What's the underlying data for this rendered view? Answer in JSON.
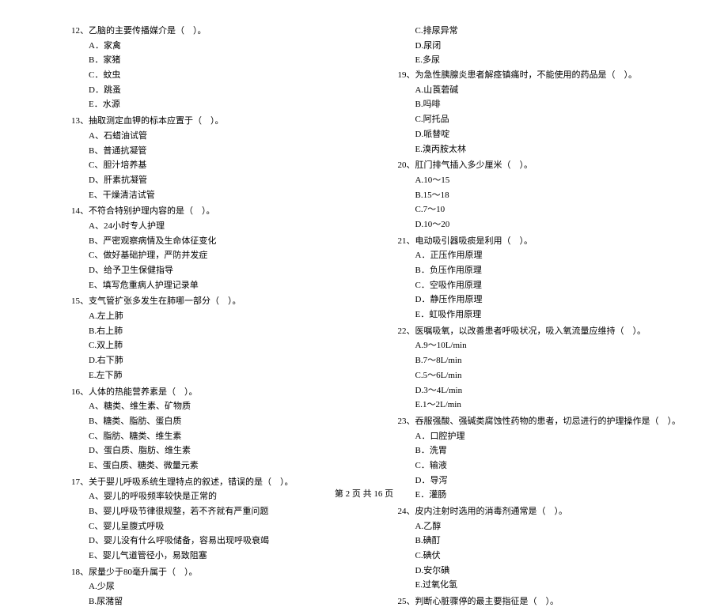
{
  "footer": "第 2 页 共 16 页",
  "left": [
    {
      "stem": "12、乙脑的主要传播媒介是（    ）。",
      "options": [
        "A．家禽",
        "B．家猪",
        "C．蚊虫",
        "D．跳蚤",
        "E．水源"
      ]
    },
    {
      "stem": "13、抽取测定血钾的标本应置于（    ）。",
      "options": [
        "A、石蜡油试管",
        "B、普通抗凝管",
        "C、胆汁培养基",
        "D、肝素抗凝管",
        "E、干燥清洁试管"
      ]
    },
    {
      "stem": "14、不符合特别护理内容的是（    ）。",
      "options": [
        "A、24小时专人护理",
        "B、严密观察病情及生命体征变化",
        "C、做好基础护理，严防并发症",
        "D、给予卫生保健指导",
        "E、填写危重病人护理记录单"
      ]
    },
    {
      "stem": "15、支气管扩张多发生在肺哪一部分（    ）。",
      "options": [
        "A.左上肺",
        "B.右上肺",
        "C.双上肺",
        "D.右下肺",
        "E.左下肺"
      ]
    },
    {
      "stem": "16、人体的热能营养素是（    ）。",
      "options": [
        "A、糖类、维生素、矿物质",
        "B、糖类、脂肪、蛋白质",
        "C、脂肪、糖类、维生素",
        "D、蛋白质、脂肪、维生素",
        "E、蛋白质、糖类、微量元素"
      ]
    },
    {
      "stem": "17、关于婴儿呼吸系统生理特点的叙述，错误的是（    ）。",
      "options": [
        "A、婴儿的呼吸频率较快是正常的",
        "B、婴儿呼吸节律很规整，若不齐就有严重问题",
        "C、婴儿呈腹式呼吸",
        "D、婴儿没有什么呼吸储备，容易出现呼吸衰竭",
        "E、婴儿气道管径小，易致阻塞"
      ]
    },
    {
      "stem": "18、尿量少于80毫升属于（    ）。",
      "options": [
        "A.少尿",
        "B.尿潴留"
      ]
    }
  ],
  "right_pre": [
    "C.排尿异常",
    "D.尿闭",
    "E.多尿"
  ],
  "right": [
    {
      "stem": "19、为急性胰腺炎患者解痉镇痛时，不能使用的药品是（    ）。",
      "options": [
        "A.山莨菪碱",
        "B.吗啡",
        "C.阿托品",
        "D.哌替啶",
        "E.溴丙胺太林"
      ]
    },
    {
      "stem": "20、肛门排气插入多少厘米（    ）。",
      "options": [
        "A.10～15",
        "B.15～18",
        "C.7～10",
        "D.10～20"
      ]
    },
    {
      "stem": "21、电动吸引器吸痰是利用（    ）。",
      "options": [
        "A．正压作用原理",
        "B．负压作用原理",
        "C．空吸作用原理",
        "D．静压作用原理",
        "E．虹吸作用原理"
      ]
    },
    {
      "stem": "22、医嘱吸氧，以改善患者呼吸状况，吸入氧流量应维持（    ）。",
      "options": [
        "A.9～10L/min",
        "B.7～8L/min",
        "C.5～6L/min",
        "D.3～4L/min",
        "E.1～2L/min"
      ]
    },
    {
      "stem": "23、吞服强酸、强碱类腐蚀性药物的患者，切忌进行的护理操作是（    ）。",
      "options": [
        "A．口腔护理",
        "B．洗胃",
        "C．输液",
        "D．导泻",
        "E．灌肠"
      ]
    },
    {
      "stem": "24、皮内注射时选用的消毒剂通常是（    ）。",
      "options": [
        "A.乙醇",
        "B.碘酊",
        "C.碘伏",
        "D.安尔碘",
        "E.过氧化氢"
      ]
    },
    {
      "stem": "25、判断心脏骤停的最主要指征是（    ）。",
      "options": []
    }
  ]
}
